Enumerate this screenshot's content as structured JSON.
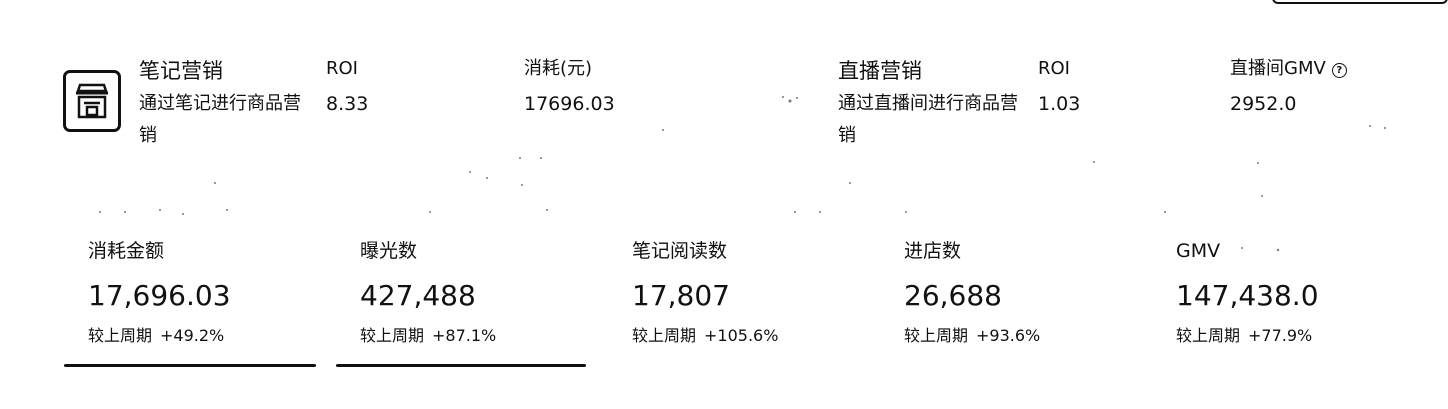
{
  "note_marketing": {
    "title": "笔记营销",
    "description": "通过笔记进行商品营销",
    "metrics": [
      {
        "label": "ROI",
        "value": "8.33"
      },
      {
        "label": "消耗(元)",
        "value": "17696.03"
      }
    ]
  },
  "live_marketing": {
    "title": "直播营销",
    "description": "通过直播间进行商品营销",
    "metrics": [
      {
        "label": "ROI",
        "value": "1.03"
      },
      {
        "label": "直播间GMV",
        "value": "2952.0"
      }
    ]
  },
  "kpis": [
    {
      "label": "消耗金额",
      "value": "17,696.03",
      "compare_label": "较上周期",
      "change": "+49.2%"
    },
    {
      "label": "曝光数",
      "value": "427,488",
      "compare_label": "较上周期",
      "change": "+87.1%"
    },
    {
      "label": "笔记阅读数",
      "value": "17,807",
      "compare_label": "较上周期",
      "change": "+105.6%"
    },
    {
      "label": "进店数",
      "value": "26,688",
      "compare_label": "较上周期",
      "change": "+93.6%"
    },
    {
      "label": "GMV",
      "value": "147,438.0",
      "compare_label": "较上周期",
      "change": "+77.9%"
    }
  ],
  "icons": {
    "logo": "store-icon",
    "help": "question-circle-icon"
  },
  "colors": {
    "text": "#111111",
    "background": "#ffffff",
    "tab_underline": "#111111"
  }
}
